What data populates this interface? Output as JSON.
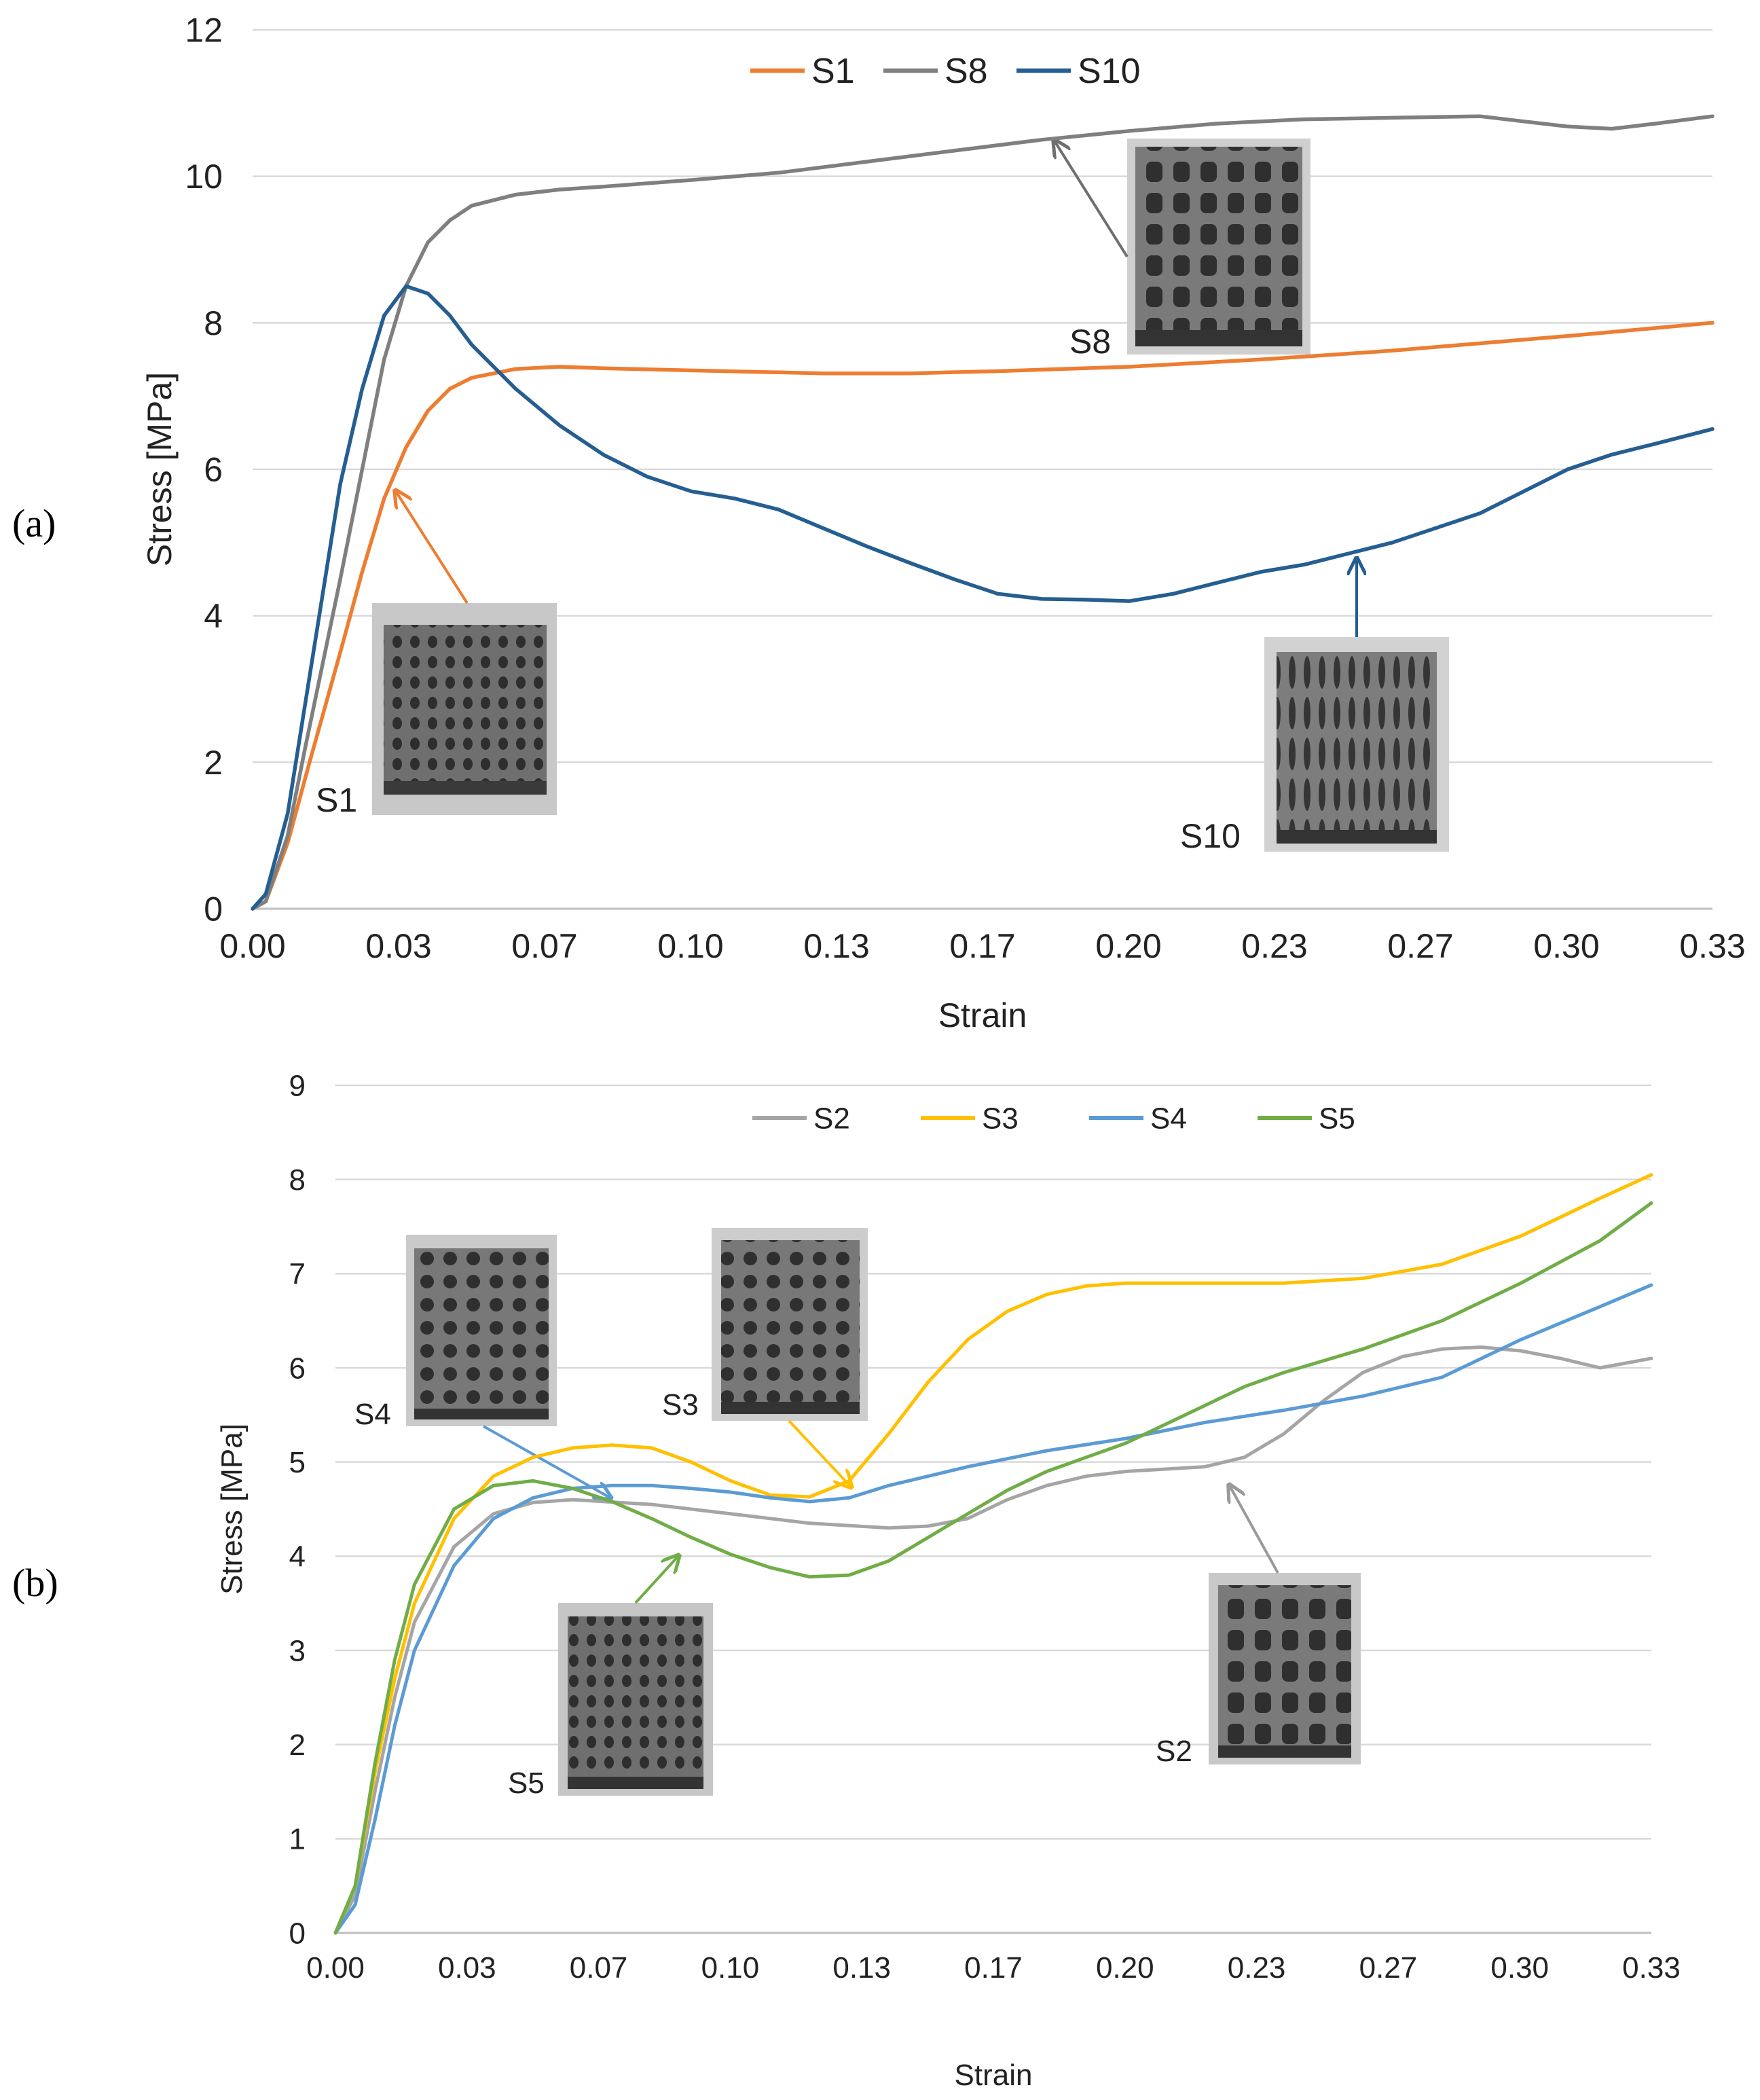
{
  "chart_data": [
    {
      "panel": "(a)",
      "type": "line",
      "xlabel": "Strain",
      "ylabel": "Stress [MPa]",
      "xlim": [
        0,
        0.333
      ],
      "ylim": [
        0,
        12
      ],
      "x_tick_labels": [
        "0.00",
        "0.03",
        "0.07",
        "0.10",
        "0.13",
        "0.17",
        "0.20",
        "0.23",
        "0.27",
        "0.30",
        "0.33"
      ],
      "y_tick_labels": [
        "0",
        "2",
        "4",
        "6",
        "8",
        "10",
        "12"
      ],
      "grid": "horizontal",
      "legend": "top-center",
      "series": [
        {
          "name": "S1",
          "color": "#ED7D31",
          "points": [
            [
              0,
              0
            ],
            [
              0.003,
              0.1
            ],
            [
              0.008,
              0.9
            ],
            [
              0.013,
              2.0
            ],
            [
              0.02,
              3.5
            ],
            [
              0.025,
              4.6
            ],
            [
              0.03,
              5.6
            ],
            [
              0.035,
              6.3
            ],
            [
              0.04,
              6.8
            ],
            [
              0.045,
              7.1
            ],
            [
              0.05,
              7.25
            ],
            [
              0.06,
              7.37
            ],
            [
              0.07,
              7.4
            ],
            [
              0.08,
              7.38
            ],
            [
              0.1,
              7.35
            ],
            [
              0.13,
              7.31
            ],
            [
              0.15,
              7.31
            ],
            [
              0.17,
              7.34
            ],
            [
              0.2,
              7.4
            ],
            [
              0.23,
              7.5
            ],
            [
              0.26,
              7.62
            ],
            [
              0.28,
              7.72
            ],
            [
              0.3,
              7.82
            ],
            [
              0.333,
              8.0
            ]
          ]
        },
        {
          "name": "S8",
          "color": "#7F7F7F",
          "points": [
            [
              0,
              0
            ],
            [
              0.003,
              0.1
            ],
            [
              0.008,
              1.0
            ],
            [
              0.012,
              2.2
            ],
            [
              0.02,
              4.5
            ],
            [
              0.025,
              6.0
            ],
            [
              0.03,
              7.5
            ],
            [
              0.035,
              8.5
            ],
            [
              0.04,
              9.1
            ],
            [
              0.045,
              9.4
            ],
            [
              0.05,
              9.6
            ],
            [
              0.06,
              9.75
            ],
            [
              0.07,
              9.82
            ],
            [
              0.08,
              9.86
            ],
            [
              0.1,
              9.95
            ],
            [
              0.12,
              10.05
            ],
            [
              0.14,
              10.2
            ],
            [
              0.16,
              10.35
            ],
            [
              0.18,
              10.5
            ],
            [
              0.2,
              10.62
            ],
            [
              0.22,
              10.72
            ],
            [
              0.24,
              10.78
            ],
            [
              0.26,
              10.8
            ],
            [
              0.28,
              10.82
            ],
            [
              0.29,
              10.75
            ],
            [
              0.3,
              10.68
            ],
            [
              0.31,
              10.65
            ],
            [
              0.32,
              10.72
            ],
            [
              0.333,
              10.82
            ]
          ]
        },
        {
          "name": "S10",
          "color": "#255E91",
          "points": [
            [
              0,
              0
            ],
            [
              0.003,
              0.2
            ],
            [
              0.008,
              1.3
            ],
            [
              0.012,
              2.8
            ],
            [
              0.016,
              4.3
            ],
            [
              0.02,
              5.8
            ],
            [
              0.025,
              7.1
            ],
            [
              0.03,
              8.1
            ],
            [
              0.035,
              8.5
            ],
            [
              0.04,
              8.4
            ],
            [
              0.045,
              8.1
            ],
            [
              0.05,
              7.7
            ],
            [
              0.06,
              7.1
            ],
            [
              0.07,
              6.6
            ],
            [
              0.08,
              6.2
            ],
            [
              0.09,
              5.9
            ],
            [
              0.1,
              5.7
            ],
            [
              0.11,
              5.6
            ],
            [
              0.12,
              5.45
            ],
            [
              0.13,
              5.2
            ],
            [
              0.14,
              4.95
            ],
            [
              0.15,
              4.72
            ],
            [
              0.16,
              4.5
            ],
            [
              0.17,
              4.3
            ],
            [
              0.18,
              4.23
            ],
            [
              0.19,
              4.22
            ],
            [
              0.2,
              4.2
            ],
            [
              0.21,
              4.3
            ],
            [
              0.22,
              4.45
            ],
            [
              0.23,
              4.6
            ],
            [
              0.24,
              4.7
            ],
            [
              0.25,
              4.85
            ],
            [
              0.26,
              5.0
            ],
            [
              0.27,
              5.2
            ],
            [
              0.28,
              5.4
            ],
            [
              0.29,
              5.7
            ],
            [
              0.3,
              6.0
            ],
            [
              0.31,
              6.2
            ],
            [
              0.32,
              6.35
            ],
            [
              0.333,
              6.55
            ]
          ]
        }
      ],
      "annotations": [
        "S1",
        "S8",
        "S10"
      ]
    },
    {
      "panel": "(b)",
      "type": "line",
      "xlabel": "Strain",
      "ylabel": "Stress [MPa]",
      "xlim": [
        0,
        0.333
      ],
      "ylim": [
        0,
        9
      ],
      "x_tick_labels": [
        "0.00",
        "0.03",
        "0.07",
        "0.10",
        "0.13",
        "0.17",
        "0.20",
        "0.23",
        "0.27",
        "0.30",
        "0.33"
      ],
      "y_tick_labels": [
        "0",
        "1",
        "2",
        "3",
        "4",
        "5",
        "6",
        "7",
        "8",
        "9"
      ],
      "grid": "horizontal",
      "legend": "top-center",
      "series": [
        {
          "name": "S2",
          "color": "#A5A5A5",
          "points": [
            [
              0,
              0
            ],
            [
              0.005,
              0.4
            ],
            [
              0.01,
              1.5
            ],
            [
              0.015,
              2.5
            ],
            [
              0.02,
              3.3
            ],
            [
              0.03,
              4.1
            ],
            [
              0.04,
              4.45
            ],
            [
              0.05,
              4.57
            ],
            [
              0.06,
              4.6
            ],
            [
              0.08,
              4.55
            ],
            [
              0.1,
              4.45
            ],
            [
              0.12,
              4.35
            ],
            [
              0.14,
              4.3
            ],
            [
              0.15,
              4.32
            ],
            [
              0.16,
              4.4
            ],
            [
              0.17,
              4.6
            ],
            [
              0.18,
              4.75
            ],
            [
              0.19,
              4.85
            ],
            [
              0.2,
              4.9
            ],
            [
              0.22,
              4.95
            ],
            [
              0.23,
              5.05
            ],
            [
              0.24,
              5.3
            ],
            [
              0.25,
              5.65
            ],
            [
              0.26,
              5.95
            ],
            [
              0.27,
              6.12
            ],
            [
              0.28,
              6.2
            ],
            [
              0.29,
              6.22
            ],
            [
              0.3,
              6.18
            ],
            [
              0.31,
              6.1
            ],
            [
              0.32,
              6.0
            ],
            [
              0.333,
              6.1
            ]
          ]
        },
        {
          "name": "S3",
          "color": "#FFC000",
          "points": [
            [
              0,
              0
            ],
            [
              0.005,
              0.5
            ],
            [
              0.01,
              1.7
            ],
            [
              0.015,
              2.7
            ],
            [
              0.02,
              3.5
            ],
            [
              0.03,
              4.4
            ],
            [
              0.04,
              4.85
            ],
            [
              0.05,
              5.05
            ],
            [
              0.06,
              5.15
            ],
            [
              0.07,
              5.18
            ],
            [
              0.08,
              5.15
            ],
            [
              0.09,
              5.0
            ],
            [
              0.1,
              4.8
            ],
            [
              0.11,
              4.65
            ],
            [
              0.12,
              4.63
            ],
            [
              0.13,
              4.8
            ],
            [
              0.14,
              5.3
            ],
            [
              0.15,
              5.85
            ],
            [
              0.16,
              6.3
            ],
            [
              0.17,
              6.6
            ],
            [
              0.18,
              6.78
            ],
            [
              0.19,
              6.87
            ],
            [
              0.2,
              6.9
            ],
            [
              0.22,
              6.9
            ],
            [
              0.24,
              6.9
            ],
            [
              0.26,
              6.95
            ],
            [
              0.28,
              7.1
            ],
            [
              0.3,
              7.4
            ],
            [
              0.32,
              7.8
            ],
            [
              0.333,
              8.05
            ]
          ]
        },
        {
          "name": "S4",
          "color": "#5B9BD5",
          "points": [
            [
              0,
              0
            ],
            [
              0.005,
              0.3
            ],
            [
              0.01,
              1.2
            ],
            [
              0.015,
              2.2
            ],
            [
              0.02,
              3.0
            ],
            [
              0.03,
              3.9
            ],
            [
              0.04,
              4.4
            ],
            [
              0.05,
              4.62
            ],
            [
              0.06,
              4.72
            ],
            [
              0.07,
              4.75
            ],
            [
              0.08,
              4.75
            ],
            [
              0.09,
              4.72
            ],
            [
              0.1,
              4.68
            ],
            [
              0.11,
              4.62
            ],
            [
              0.12,
              4.58
            ],
            [
              0.13,
              4.62
            ],
            [
              0.14,
              4.75
            ],
            [
              0.15,
              4.85
            ],
            [
              0.16,
              4.95
            ],
            [
              0.18,
              5.12
            ],
            [
              0.2,
              5.25
            ],
            [
              0.22,
              5.42
            ],
            [
              0.24,
              5.55
            ],
            [
              0.26,
              5.7
            ],
            [
              0.28,
              5.9
            ],
            [
              0.3,
              6.3
            ],
            [
              0.32,
              6.65
            ],
            [
              0.333,
              6.88
            ]
          ]
        },
        {
          "name": "S5",
          "color": "#70AD47",
          "points": [
            [
              0,
              0
            ],
            [
              0.005,
              0.5
            ],
            [
              0.01,
              1.8
            ],
            [
              0.015,
              2.9
            ],
            [
              0.02,
              3.7
            ],
            [
              0.03,
              4.5
            ],
            [
              0.04,
              4.75
            ],
            [
              0.05,
              4.8
            ],
            [
              0.06,
              4.72
            ],
            [
              0.07,
              4.58
            ],
            [
              0.08,
              4.4
            ],
            [
              0.09,
              4.2
            ],
            [
              0.1,
              4.02
            ],
            [
              0.11,
              3.88
            ],
            [
              0.12,
              3.78
            ],
            [
              0.13,
              3.8
            ],
            [
              0.14,
              3.95
            ],
            [
              0.15,
              4.2
            ],
            [
              0.16,
              4.45
            ],
            [
              0.17,
              4.7
            ],
            [
              0.18,
              4.9
            ],
            [
              0.19,
              5.05
            ],
            [
              0.2,
              5.2
            ],
            [
              0.21,
              5.4
            ],
            [
              0.22,
              5.6
            ],
            [
              0.23,
              5.8
            ],
            [
              0.24,
              5.95
            ],
            [
              0.26,
              6.2
            ],
            [
              0.28,
              6.5
            ],
            [
              0.3,
              6.9
            ],
            [
              0.32,
              7.35
            ],
            [
              0.333,
              7.75
            ]
          ]
        }
      ],
      "annotations": [
        "S2",
        "S3",
        "S4",
        "S5"
      ]
    }
  ]
}
